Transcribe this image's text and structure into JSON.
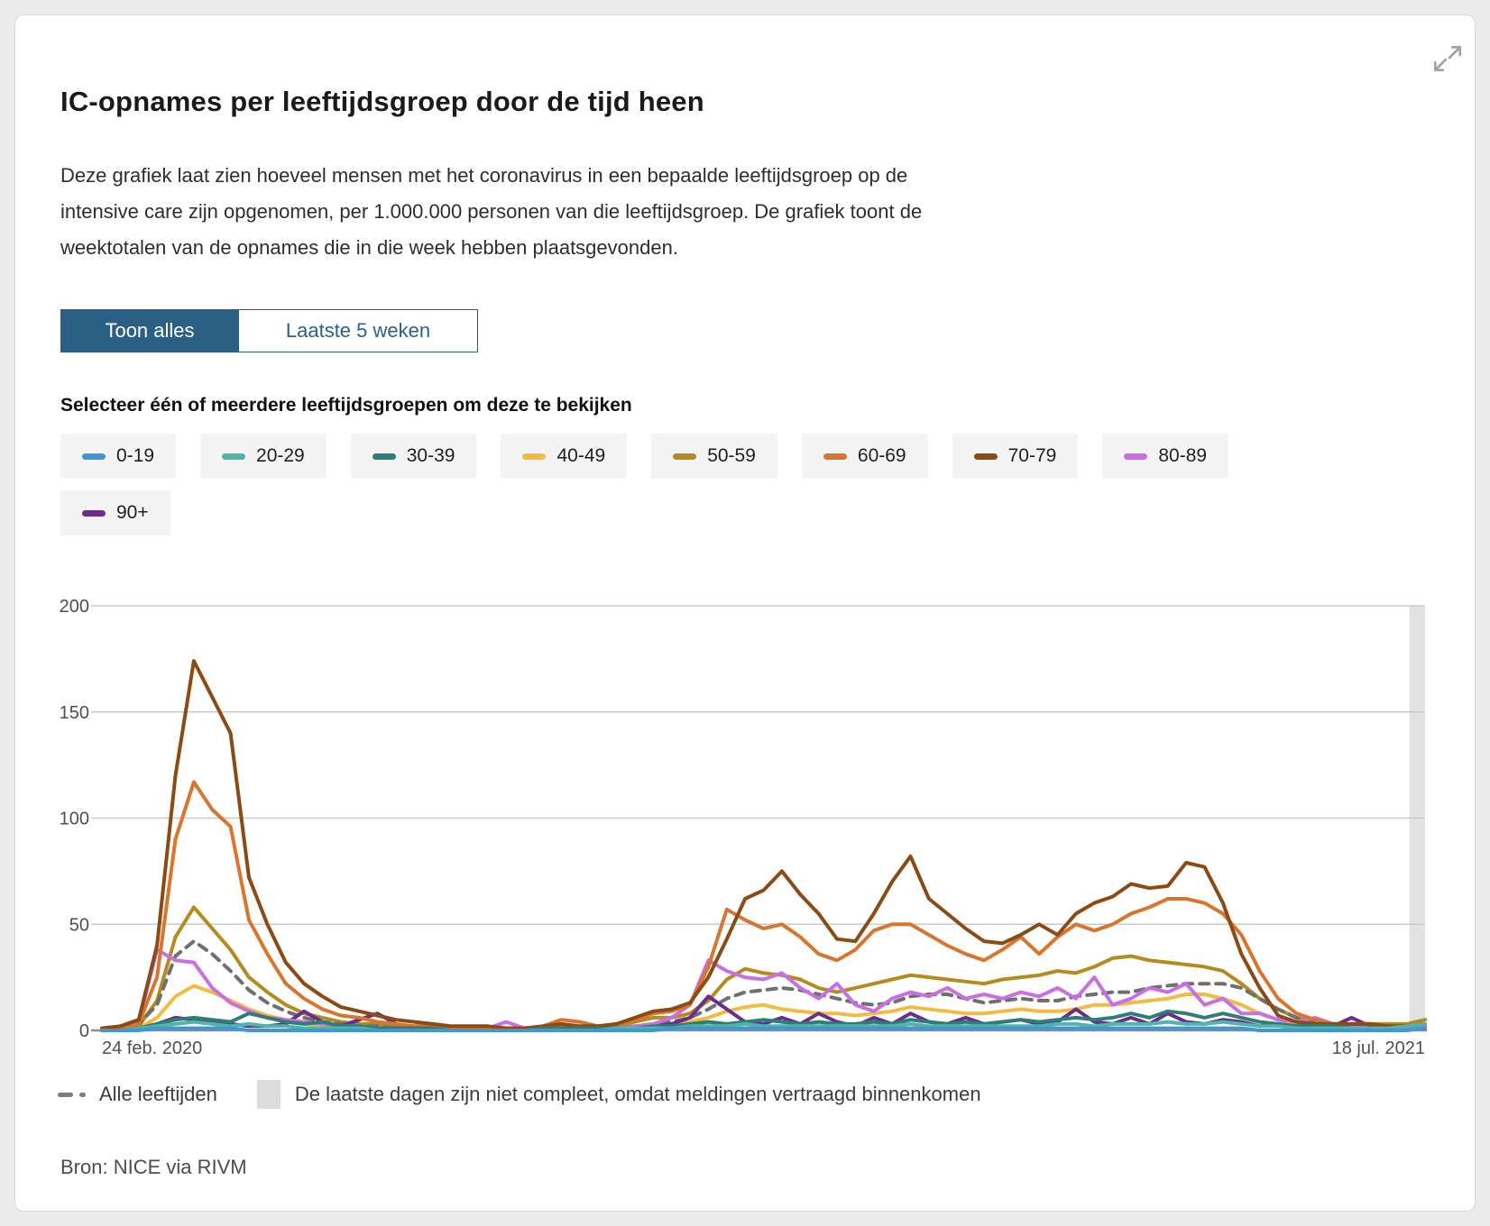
{
  "page": {
    "background": "#ebebeb",
    "card_background": "#ffffff",
    "card_border": "#d9d9d9"
  },
  "header": {
    "title": "IC-opnames per leeftijdsgroep door de tijd heen",
    "description": "Deze grafiek laat zien hoeveel mensen met het coronavirus in een bepaalde leeftijdsgroep op de intensive care zijn opgenomen, per 1.000.000 personen van die leeftijdsgroep. De grafiek toont de weektotalen van de opnames die in die week hebben plaatsgevonden."
  },
  "toggle": {
    "show_all_label": "Toon alles",
    "last_weeks_label": "Laatste 5 weken",
    "active": "Toon alles",
    "active_bg": "#2b5f83",
    "border_color": "#265a7d",
    "inactive_text_color": "#2a6189"
  },
  "selector_label": "Selecteer één of meerdere leeftijdsgroepen om deze te bekijken",
  "chart_data": {
    "type": "line",
    "x_axis": {
      "start_label": "24 feb. 2020",
      "end_label": "18 jul. 2021",
      "points": 73,
      "unit": "week"
    },
    "y_axis": {
      "ticks": [
        0,
        50,
        100,
        150,
        200
      ],
      "ylim": [
        0,
        200
      ]
    },
    "grid_color": "#cbcbcb",
    "axis_color": "#8c8c8c",
    "incomplete_band": {
      "color": "#e2e2e2",
      "weeks": 1
    },
    "series": [
      {
        "name": "0-19",
        "color": "#4296d6",
        "values": [
          0,
          0,
          0,
          1,
          1,
          1,
          1,
          1,
          0,
          0,
          0,
          0,
          0,
          0,
          0,
          0,
          0,
          0,
          0,
          0,
          0,
          0,
          0,
          0,
          0,
          0,
          0,
          0,
          0,
          0,
          0,
          1,
          1,
          1,
          1,
          1,
          1,
          1,
          1,
          1,
          1,
          1,
          1,
          1,
          1,
          1,
          1,
          1,
          1,
          1,
          1,
          1,
          1,
          1,
          1,
          1,
          1,
          1,
          1,
          1,
          1,
          1,
          1,
          0,
          0,
          0,
          0,
          0,
          0,
          0,
          0,
          0,
          1
        ]
      },
      {
        "name": "20-29",
        "color": "#4fb6ac",
        "values": [
          0,
          0,
          1,
          2,
          3,
          4,
          3,
          2,
          3,
          2,
          2,
          1,
          1,
          1,
          1,
          0,
          0,
          0,
          0,
          0,
          0,
          0,
          0,
          0,
          0,
          0,
          0,
          0,
          1,
          1,
          1,
          1,
          2,
          2,
          2,
          3,
          2,
          2,
          2,
          2,
          2,
          2,
          2,
          2,
          3,
          2,
          2,
          2,
          2,
          2,
          2,
          2,
          3,
          3,
          2,
          3,
          3,
          3,
          4,
          3,
          3,
          4,
          3,
          2,
          2,
          1,
          1,
          1,
          1,
          1,
          1,
          2,
          3
        ]
      },
      {
        "name": "30-39",
        "color": "#2f7e76",
        "values": [
          0,
          0,
          1,
          3,
          5,
          6,
          5,
          4,
          8,
          6,
          4,
          3,
          4,
          2,
          2,
          1,
          1,
          1,
          1,
          0,
          0,
          0,
          0,
          0,
          1,
          1,
          1,
          1,
          1,
          1,
          2,
          2,
          3,
          4,
          3,
          4,
          5,
          4,
          3,
          4,
          3,
          3,
          4,
          3,
          5,
          4,
          3,
          4,
          3,
          4,
          5,
          4,
          5,
          6,
          5,
          6,
          8,
          6,
          9,
          8,
          6,
          8,
          6,
          4,
          3,
          2,
          2,
          2,
          1,
          1,
          1,
          2,
          3
        ]
      },
      {
        "name": "40-49",
        "color": "#f3bb41",
        "values": [
          0,
          0,
          1,
          6,
          16,
          21,
          18,
          14,
          10,
          7,
          5,
          3,
          2,
          2,
          1,
          1,
          1,
          1,
          0,
          0,
          0,
          0,
          0,
          0,
          1,
          1,
          1,
          0,
          1,
          2,
          2,
          3,
          4,
          6,
          9,
          11,
          12,
          10,
          9,
          8,
          8,
          7,
          8,
          9,
          11,
          10,
          9,
          8,
          8,
          9,
          10,
          9,
          9,
          10,
          12,
          12,
          13,
          14,
          15,
          17,
          17,
          15,
          12,
          8,
          5,
          3,
          2,
          2,
          2,
          2,
          2,
          2,
          3
        ]
      },
      {
        "name": "50-59",
        "color": "#b58a1e",
        "values": [
          0,
          1,
          2,
          14,
          44,
          58,
          48,
          38,
          25,
          18,
          12,
          8,
          6,
          4,
          3,
          3,
          2,
          2,
          1,
          1,
          1,
          1,
          1,
          1,
          1,
          2,
          1,
          1,
          2,
          4,
          6,
          6,
          8,
          14,
          24,
          29,
          27,
          26,
          24,
          20,
          18,
          20,
          22,
          24,
          26,
          25,
          24,
          23,
          22,
          24,
          25,
          26,
          28,
          27,
          30,
          34,
          35,
          33,
          32,
          31,
          30,
          28,
          22,
          15,
          10,
          6,
          4,
          3,
          3,
          3,
          3,
          3,
          5
        ]
      },
      {
        "name": "60-69",
        "color": "#d8752e",
        "values": [
          0,
          1,
          3,
          25,
          90,
          117,
          104,
          96,
          52,
          36,
          22,
          15,
          10,
          7,
          6,
          4,
          3,
          2,
          2,
          1,
          1,
          1,
          1,
          1,
          2,
          5,
          4,
          2,
          3,
          5,
          8,
          9,
          12,
          30,
          57,
          52,
          48,
          50,
          44,
          36,
          33,
          38,
          47,
          50,
          50,
          45,
          40,
          36,
          33,
          38,
          44,
          36,
          44,
          50,
          47,
          50,
          55,
          58,
          62,
          62,
          60,
          55,
          45,
          28,
          15,
          8,
          5,
          3,
          3,
          3,
          2,
          2,
          3
        ]
      },
      {
        "name": "70-79",
        "color": "#8c4a14",
        "values": [
          1,
          2,
          5,
          40,
          120,
          174,
          157,
          140,
          72,
          50,
          32,
          22,
          16,
          11,
          9,
          7,
          5,
          4,
          3,
          2,
          2,
          2,
          1,
          1,
          2,
          3,
          2,
          2,
          3,
          6,
          9,
          10,
          13,
          25,
          43,
          62,
          66,
          75,
          64,
          55,
          43,
          42,
          55,
          70,
          82,
          62,
          55,
          48,
          42,
          41,
          45,
          50,
          45,
          55,
          60,
          63,
          69,
          67,
          68,
          79,
          77,
          60,
          36,
          20,
          7,
          4,
          3,
          3,
          3,
          3,
          2,
          2,
          3
        ]
      },
      {
        "name": "80-89",
        "color": "#c96fe3",
        "values": [
          0,
          1,
          4,
          38,
          33,
          32,
          20,
          13,
          9,
          6,
          5,
          4,
          3,
          2,
          2,
          1,
          1,
          1,
          0,
          0,
          0,
          1,
          4,
          1,
          1,
          1,
          0,
          1,
          1,
          2,
          3,
          6,
          12,
          33,
          28,
          25,
          24,
          27,
          20,
          15,
          22,
          12,
          9,
          15,
          18,
          16,
          20,
          15,
          17,
          15,
          18,
          16,
          20,
          15,
          25,
          12,
          15,
          20,
          18,
          22,
          12,
          15,
          8,
          8,
          5,
          4,
          6,
          3,
          2,
          1,
          1,
          1,
          2
        ]
      },
      {
        "name": "90+",
        "color": "#6a2d8f",
        "values": [
          0,
          0,
          1,
          3,
          6,
          5,
          4,
          3,
          2,
          2,
          3,
          9,
          4,
          2,
          5,
          8,
          3,
          1,
          1,
          0,
          0,
          0,
          0,
          0,
          0,
          0,
          0,
          0,
          1,
          1,
          2,
          3,
          6,
          16,
          10,
          4,
          3,
          6,
          3,
          8,
          4,
          2,
          6,
          3,
          8,
          4,
          3,
          6,
          3,
          4,
          5,
          3,
          4,
          10,
          4,
          3,
          6,
          3,
          8,
          4,
          3,
          5,
          4,
          2,
          3,
          2,
          2,
          2,
          6,
          2,
          1,
          1,
          1
        ]
      },
      {
        "name": "Alle leeftijden",
        "color": "#6f6f6f",
        "dashed": true,
        "values": [
          0,
          1,
          3,
          12,
          35,
          42,
          36,
          28,
          19,
          13,
          9,
          6,
          4,
          3,
          2,
          2,
          1,
          1,
          1,
          0,
          0,
          0,
          0,
          0,
          0,
          1,
          1,
          1,
          1,
          2,
          3,
          4,
          6,
          10,
          15,
          18,
          19,
          20,
          19,
          17,
          15,
          13,
          12,
          13,
          16,
          17,
          17,
          15,
          13,
          14,
          15,
          14,
          14,
          16,
          17,
          18,
          18,
          20,
          21,
          22,
          22,
          22,
          20,
          15,
          10,
          6,
          4,
          3,
          2,
          2,
          2,
          2,
          3
        ]
      }
    ],
    "z_order": [
      "40-49",
      "50-59",
      "Alle leeftijden",
      "90+",
      "80-89",
      "60-69",
      "70-79",
      "30-39",
      "20-29",
      "0-19"
    ]
  },
  "chart_legend": {
    "dashed_label": "Alle leeftijden",
    "band_label": "De laatste dagen zijn niet compleet, omdat meldingen vertraagd binnenkomen",
    "band_swatch_color": "#dcdcdc"
  },
  "source": "Bron: NICE via RIVM"
}
